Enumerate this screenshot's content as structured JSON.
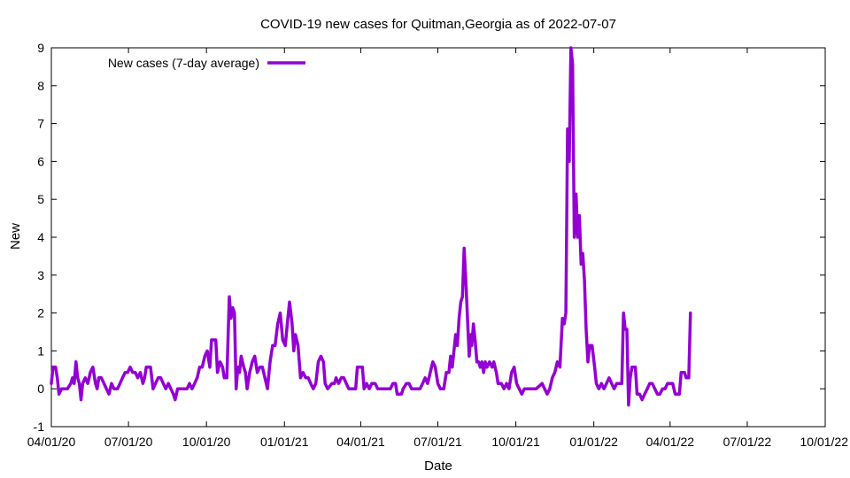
{
  "chart_data": {
    "type": "line",
    "title": "COVID-19 new cases for Quitman,Georgia as of 2022-07-07",
    "xlabel": "Date",
    "ylabel": "New",
    "xlim": [
      "2020-04-01",
      "2022-10-01"
    ],
    "ylim": [
      -1,
      9
    ],
    "x_ticks": [
      {
        "date": "2020-04-01",
        "label": "04/01/20"
      },
      {
        "date": "2020-07-01",
        "label": "07/01/20"
      },
      {
        "date": "2020-10-01",
        "label": "10/01/20"
      },
      {
        "date": "2021-01-01",
        "label": "01/01/21"
      },
      {
        "date": "2021-04-01",
        "label": "04/01/21"
      },
      {
        "date": "2021-07-01",
        "label": "07/01/21"
      },
      {
        "date": "2021-10-01",
        "label": "10/01/21"
      },
      {
        "date": "2022-01-01",
        "label": "01/01/22"
      },
      {
        "date": "2022-04-01",
        "label": "04/01/22"
      },
      {
        "date": "2022-07-01",
        "label": "07/01/22"
      },
      {
        "date": "2022-10-01",
        "label": "10/01/22"
      }
    ],
    "y_ticks": [
      -1,
      0,
      1,
      2,
      3,
      4,
      5,
      6,
      7,
      8,
      9
    ],
    "grid": false,
    "legend_position": "top-left",
    "series": [
      {
        "name": "New cases (7-day average)",
        "color": "#9400d3",
        "points": [
          [
            "2020-04-01",
            0.14
          ],
          [
            "2020-04-03",
            0.57
          ],
          [
            "2020-04-06",
            0.57
          ],
          [
            "2020-04-08",
            0.29
          ],
          [
            "2020-04-10",
            -0.14
          ],
          [
            "2020-04-13",
            0.0
          ],
          [
            "2020-04-16",
            0.0
          ],
          [
            "2020-04-20",
            0.0
          ],
          [
            "2020-04-24",
            0.14
          ],
          [
            "2020-04-26",
            0.29
          ],
          [
            "2020-04-28",
            0.14
          ],
          [
            "2020-04-30",
            0.71
          ],
          [
            "2020-05-02",
            0.29
          ],
          [
            "2020-05-04",
            0.14
          ],
          [
            "2020-05-06",
            -0.29
          ],
          [
            "2020-05-08",
            0.14
          ],
          [
            "2020-05-11",
            0.29
          ],
          [
            "2020-05-14",
            0.14
          ],
          [
            "2020-05-17",
            0.43
          ],
          [
            "2020-05-20",
            0.57
          ],
          [
            "2020-05-23",
            0.14
          ],
          [
            "2020-05-25",
            0.0
          ],
          [
            "2020-05-27",
            0.29
          ],
          [
            "2020-05-30",
            0.29
          ],
          [
            "2020-06-02",
            0.14
          ],
          [
            "2020-06-05",
            0.0
          ],
          [
            "2020-06-08",
            -0.14
          ],
          [
            "2020-06-11",
            0.14
          ],
          [
            "2020-06-14",
            0.0
          ],
          [
            "2020-06-18",
            0.0
          ],
          [
            "2020-06-21",
            0.14
          ],
          [
            "2020-06-24",
            0.29
          ],
          [
            "2020-06-27",
            0.43
          ],
          [
            "2020-06-30",
            0.43
          ],
          [
            "2020-07-03",
            0.57
          ],
          [
            "2020-07-06",
            0.43
          ],
          [
            "2020-07-09",
            0.43
          ],
          [
            "2020-07-12",
            0.29
          ],
          [
            "2020-07-15",
            0.43
          ],
          [
            "2020-07-18",
            0.14
          ],
          [
            "2020-07-20",
            0.29
          ],
          [
            "2020-07-22",
            0.57
          ],
          [
            "2020-07-27",
            0.57
          ],
          [
            "2020-07-30",
            0.0
          ],
          [
            "2020-08-02",
            0.14
          ],
          [
            "2020-08-05",
            0.29
          ],
          [
            "2020-08-08",
            0.29
          ],
          [
            "2020-08-11",
            0.14
          ],
          [
            "2020-08-14",
            0.0
          ],
          [
            "2020-08-17",
            0.14
          ],
          [
            "2020-08-20",
            0.0
          ],
          [
            "2020-08-23",
            -0.14
          ],
          [
            "2020-08-25",
            -0.29
          ],
          [
            "2020-08-28",
            0.0
          ],
          [
            "2020-09-03",
            0.0
          ],
          [
            "2020-09-08",
            0.0
          ],
          [
            "2020-09-11",
            0.14
          ],
          [
            "2020-09-14",
            0.0
          ],
          [
            "2020-09-17",
            0.14
          ],
          [
            "2020-09-20",
            0.29
          ],
          [
            "2020-09-23",
            0.57
          ],
          [
            "2020-09-26",
            0.57
          ],
          [
            "2020-09-29",
            0.86
          ],
          [
            "2020-10-02",
            1.0
          ],
          [
            "2020-10-05",
            0.57
          ],
          [
            "2020-10-07",
            1.29
          ],
          [
            "2020-10-12",
            1.29
          ],
          [
            "2020-10-14",
            0.43
          ],
          [
            "2020-10-17",
            0.71
          ],
          [
            "2020-10-20",
            0.57
          ],
          [
            "2020-10-22",
            0.29
          ],
          [
            "2020-10-25",
            0.29
          ],
          [
            "2020-10-28",
            2.43
          ],
          [
            "2020-10-30",
            1.86
          ],
          [
            "2020-11-01",
            2.14
          ],
          [
            "2020-11-03",
            2.0
          ],
          [
            "2020-11-05",
            0.0
          ],
          [
            "2020-11-07",
            0.57
          ],
          [
            "2020-11-09",
            0.43
          ],
          [
            "2020-11-11",
            0.86
          ],
          [
            "2020-11-14",
            0.57
          ],
          [
            "2020-11-16",
            0.43
          ],
          [
            "2020-11-18",
            0.0
          ],
          [
            "2020-11-21",
            0.43
          ],
          [
            "2020-11-24",
            0.71
          ],
          [
            "2020-11-27",
            0.86
          ],
          [
            "2020-11-30",
            0.43
          ],
          [
            "2020-12-03",
            0.57
          ],
          [
            "2020-12-06",
            0.57
          ],
          [
            "2020-12-09",
            0.29
          ],
          [
            "2020-12-12",
            0.0
          ],
          [
            "2020-12-15",
            0.71
          ],
          [
            "2020-12-18",
            1.14
          ],
          [
            "2020-12-21",
            1.14
          ],
          [
            "2020-12-24",
            1.71
          ],
          [
            "2020-12-27",
            2.0
          ],
          [
            "2020-12-30",
            1.29
          ],
          [
            "2021-01-02",
            1.14
          ],
          [
            "2021-01-05",
            1.86
          ],
          [
            "2021-01-07",
            2.29
          ],
          [
            "2021-01-10",
            1.71
          ],
          [
            "2021-01-12",
            1.0
          ],
          [
            "2021-01-14",
            1.43
          ],
          [
            "2021-01-17",
            1.14
          ],
          [
            "2021-01-20",
            0.29
          ],
          [
            "2021-01-23",
            0.43
          ],
          [
            "2021-01-26",
            0.29
          ],
          [
            "2021-01-29",
            0.29
          ],
          [
            "2021-02-01",
            0.14
          ],
          [
            "2021-02-04",
            0.0
          ],
          [
            "2021-02-07",
            0.14
          ],
          [
            "2021-02-10",
            0.71
          ],
          [
            "2021-02-13",
            0.86
          ],
          [
            "2021-02-16",
            0.71
          ],
          [
            "2021-02-18",
            0.14
          ],
          [
            "2021-02-21",
            0.0
          ],
          [
            "2021-02-26",
            0.14
          ],
          [
            "2021-03-01",
            0.14
          ],
          [
            "2021-03-03",
            0.29
          ],
          [
            "2021-03-06",
            0.14
          ],
          [
            "2021-03-09",
            0.29
          ],
          [
            "2021-03-12",
            0.29
          ],
          [
            "2021-03-15",
            0.14
          ],
          [
            "2021-03-18",
            0.0
          ],
          [
            "2021-03-22",
            0.0
          ],
          [
            "2021-03-26",
            0.0
          ],
          [
            "2021-03-28",
            0.57
          ],
          [
            "2021-04-03",
            0.57
          ],
          [
            "2021-04-05",
            0.0
          ],
          [
            "2021-04-08",
            0.14
          ],
          [
            "2021-04-11",
            0.0
          ],
          [
            "2021-04-14",
            0.14
          ],
          [
            "2021-04-18",
            0.14
          ],
          [
            "2021-04-21",
            0.0
          ],
          [
            "2021-04-26",
            0.0
          ],
          [
            "2021-05-01",
            0.0
          ],
          [
            "2021-05-06",
            0.0
          ],
          [
            "2021-05-09",
            0.14
          ],
          [
            "2021-05-12",
            0.14
          ],
          [
            "2021-05-14",
            -0.14
          ],
          [
            "2021-05-19",
            -0.14
          ],
          [
            "2021-05-21",
            0.0
          ],
          [
            "2021-05-25",
            0.14
          ],
          [
            "2021-05-28",
            0.14
          ],
          [
            "2021-05-31",
            0.0
          ],
          [
            "2021-06-05",
            0.0
          ],
          [
            "2021-06-10",
            0.0
          ],
          [
            "2021-06-13",
            0.14
          ],
          [
            "2021-06-16",
            0.29
          ],
          [
            "2021-06-19",
            0.14
          ],
          [
            "2021-06-22",
            0.43
          ],
          [
            "2021-06-25",
            0.71
          ],
          [
            "2021-06-28",
            0.57
          ],
          [
            "2021-07-01",
            0.14
          ],
          [
            "2021-07-04",
            0.0
          ],
          [
            "2021-07-08",
            0.0
          ],
          [
            "2021-07-11",
            0.43
          ],
          [
            "2021-07-14",
            0.43
          ],
          [
            "2021-07-16",
            0.86
          ],
          [
            "2021-07-18",
            0.57
          ],
          [
            "2021-07-20",
            1.0
          ],
          [
            "2021-07-22",
            1.43
          ],
          [
            "2021-07-24",
            1.14
          ],
          [
            "2021-07-26",
            1.86
          ],
          [
            "2021-07-28",
            2.29
          ],
          [
            "2021-07-30",
            2.43
          ],
          [
            "2021-08-01",
            3.71
          ],
          [
            "2021-08-03",
            2.86
          ],
          [
            "2021-08-05",
            1.86
          ],
          [
            "2021-08-07",
            0.86
          ],
          [
            "2021-08-09",
            1.43
          ],
          [
            "2021-08-10",
            1.14
          ],
          [
            "2021-08-12",
            1.71
          ],
          [
            "2021-08-14",
            1.29
          ],
          [
            "2021-08-16",
            0.71
          ],
          [
            "2021-08-18",
            0.71
          ],
          [
            "2021-08-20",
            0.57
          ],
          [
            "2021-08-22",
            0.71
          ],
          [
            "2021-08-24",
            0.43
          ],
          [
            "2021-08-26",
            0.71
          ],
          [
            "2021-08-28",
            0.57
          ],
          [
            "2021-08-31",
            0.71
          ],
          [
            "2021-09-03",
            0.57
          ],
          [
            "2021-09-05",
            0.71
          ],
          [
            "2021-09-08",
            0.43
          ],
          [
            "2021-09-10",
            0.14
          ],
          [
            "2021-09-14",
            0.14
          ],
          [
            "2021-09-17",
            0.0
          ],
          [
            "2021-09-20",
            0.14
          ],
          [
            "2021-09-23",
            0.0
          ],
          [
            "2021-09-26",
            0.43
          ],
          [
            "2021-09-29",
            0.57
          ],
          [
            "2021-10-02",
            0.14
          ],
          [
            "2021-10-05",
            0.0
          ],
          [
            "2021-10-08",
            -0.14
          ],
          [
            "2021-10-11",
            0.0
          ],
          [
            "2021-10-18",
            0.0
          ],
          [
            "2021-10-25",
            0.0
          ],
          [
            "2021-11-01",
            0.14
          ],
          [
            "2021-11-04",
            0.0
          ],
          [
            "2021-11-07",
            -0.14
          ],
          [
            "2021-11-10",
            0.0
          ],
          [
            "2021-11-13",
            0.29
          ],
          [
            "2021-11-16",
            0.43
          ],
          [
            "2021-11-19",
            0.71
          ],
          [
            "2021-11-22",
            0.57
          ],
          [
            "2021-11-25",
            1.86
          ],
          [
            "2021-11-27",
            1.71
          ],
          [
            "2021-11-29",
            2.0
          ],
          [
            "2021-12-01",
            6.86
          ],
          [
            "2021-12-03",
            6.0
          ],
          [
            "2021-12-05",
            9.0
          ],
          [
            "2021-12-07",
            8.57
          ],
          [
            "2021-12-09",
            4.0
          ],
          [
            "2021-12-11",
            5.14
          ],
          [
            "2021-12-13",
            4.0
          ],
          [
            "2021-12-15",
            4.57
          ],
          [
            "2021-12-17",
            3.29
          ],
          [
            "2021-12-19",
            3.57
          ],
          [
            "2021-12-21",
            2.86
          ],
          [
            "2021-12-23",
            1.57
          ],
          [
            "2021-12-25",
            0.71
          ],
          [
            "2021-12-27",
            1.14
          ],
          [
            "2021-12-30",
            1.14
          ],
          [
            "2022-01-02",
            0.57
          ],
          [
            "2022-01-04",
            0.14
          ],
          [
            "2022-01-07",
            0.0
          ],
          [
            "2022-01-10",
            0.14
          ],
          [
            "2022-01-13",
            0.0
          ],
          [
            "2022-01-16",
            0.14
          ],
          [
            "2022-01-19",
            0.29
          ],
          [
            "2022-01-22",
            0.14
          ],
          [
            "2022-01-25",
            0.0
          ],
          [
            "2022-01-28",
            0.14
          ],
          [
            "2022-02-03",
            0.14
          ],
          [
            "2022-02-05",
            2.0
          ],
          [
            "2022-02-07",
            1.57
          ],
          [
            "2022-02-09",
            1.57
          ],
          [
            "2022-02-11",
            -0.43
          ],
          [
            "2022-02-13",
            0.29
          ],
          [
            "2022-02-15",
            0.57
          ],
          [
            "2022-02-19",
            0.57
          ],
          [
            "2022-02-21",
            -0.14
          ],
          [
            "2022-02-24",
            -0.14
          ],
          [
            "2022-02-27",
            -0.29
          ],
          [
            "2022-03-02",
            -0.14
          ],
          [
            "2022-03-05",
            0.0
          ],
          [
            "2022-03-08",
            0.14
          ],
          [
            "2022-03-11",
            0.14
          ],
          [
            "2022-03-14",
            0.0
          ],
          [
            "2022-03-17",
            -0.14
          ],
          [
            "2022-03-20",
            -0.14
          ],
          [
            "2022-03-23",
            0.0
          ],
          [
            "2022-03-26",
            0.0
          ],
          [
            "2022-03-29",
            0.14
          ],
          [
            "2022-04-04",
            0.14
          ],
          [
            "2022-04-07",
            -0.14
          ],
          [
            "2022-04-12",
            -0.14
          ],
          [
            "2022-04-14",
            0.43
          ],
          [
            "2022-04-18",
            0.43
          ],
          [
            "2022-04-20",
            0.29
          ],
          [
            "2022-04-23",
            0.29
          ],
          [
            "2022-04-25",
            2.0
          ]
        ]
      }
    ]
  }
}
